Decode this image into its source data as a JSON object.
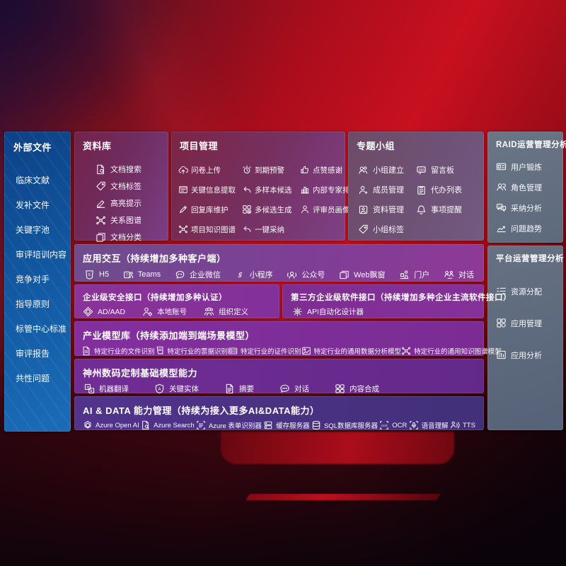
{
  "colors": {
    "background_red": "#c20f1e",
    "sidebar_blue": "#1157a0",
    "panel_purple": "#83309a",
    "panel_slate": "#5f6c7e",
    "row_indigo": "#47317f"
  },
  "left_panel": {
    "title": "外部文件",
    "items": [
      {
        "label": "临床文献"
      },
      {
        "label": "发补文件"
      },
      {
        "label": "关键字池"
      },
      {
        "label": "审评培训内容"
      },
      {
        "label": "竞争对手"
      },
      {
        "label": "指导原则"
      },
      {
        "label": "标管中心标准"
      },
      {
        "label": "审评报告"
      },
      {
        "label": "共性问题"
      }
    ]
  },
  "sections": {
    "library": {
      "title": "资料库",
      "items": [
        {
          "label": "文档搜索",
          "icon": "document-search-icon"
        },
        {
          "label": "文档标签",
          "icon": "tag-icon"
        },
        {
          "label": "高亮提示",
          "icon": "highlighter-icon"
        },
        {
          "label": "关系图谱",
          "icon": "knowledge-graph-icon"
        },
        {
          "label": "文档分类",
          "icon": "document-copy-icon"
        }
      ]
    },
    "project": {
      "title": "项目管理",
      "items": [
        {
          "label": "问卷上传",
          "icon": "cloud-upload-icon"
        },
        {
          "label": "到期预警",
          "icon": "alarm-icon"
        },
        {
          "label": "点赞感谢",
          "icon": "thumbs-up-icon"
        },
        {
          "label": "关键信息提取",
          "icon": "info-extract-icon"
        },
        {
          "label": "多样本候选",
          "icon": "reply-arrow-icon"
        },
        {
          "label": "内部专家排名",
          "icon": "ranking-icon"
        },
        {
          "label": "回复库维护",
          "icon": "pen-icon"
        },
        {
          "label": "多候选生成",
          "icon": "grid-generate-icon"
        },
        {
          "label": "评审员画像",
          "icon": "person-icon"
        },
        {
          "label": "项目知识图谱",
          "icon": "knowledge-graph-icon"
        },
        {
          "label": "一键采纳",
          "icon": "adopt-arrow-icon"
        }
      ]
    },
    "topic_group": {
      "title": "专题小组",
      "items": [
        {
          "label": "小组建立",
          "icon": "group-icon"
        },
        {
          "label": "留言板",
          "icon": "bbs-icon"
        },
        {
          "label": "成员管理",
          "icon": "member-icon"
        },
        {
          "label": "代办列表",
          "icon": "todo-list-icon"
        },
        {
          "label": "资料管理",
          "icon": "album-icon"
        },
        {
          "label": "事项提醒",
          "icon": "bell-icon"
        },
        {
          "label": "小组标签",
          "icon": "tag-icon"
        }
      ]
    },
    "raid": {
      "title": "RAID运营管理分析",
      "items": [
        {
          "label": "用户锻炼",
          "icon": "id-card-icon"
        },
        {
          "label": "角色管理",
          "icon": "roles-icon"
        },
        {
          "label": "采纳分析",
          "icon": "qa-chat-icon"
        },
        {
          "label": "问题趋势",
          "icon": "trend-icon"
        }
      ]
    },
    "platform": {
      "title": "平台运营管理分析",
      "items": [
        {
          "label": "资源分配",
          "icon": "resource-list-icon"
        },
        {
          "label": "应用管理",
          "icon": "apps-grid-icon"
        },
        {
          "label": "应用分析",
          "icon": "app-analytics-icon"
        }
      ]
    },
    "interaction": {
      "title": "应用交互（持续增加多种客户端）",
      "items": [
        {
          "label": "H5",
          "icon": "html5-icon"
        },
        {
          "label": "Teams",
          "icon": "teams-icon"
        },
        {
          "label": "企业微信",
          "icon": "wechat-work-icon"
        },
        {
          "label": "小程序",
          "icon": "miniprogram-icon"
        },
        {
          "label": "公众号",
          "icon": "official-account-icon"
        },
        {
          "label": "Web飘窗",
          "icon": "web-window-icon"
        },
        {
          "label": "门户",
          "icon": "portal-icon"
        },
        {
          "label": "对话",
          "icon": "dialog-icon"
        }
      ]
    },
    "security": {
      "title": "企业级安全接口（持续增加多种认证）",
      "items": [
        {
          "label": "AD/AAD",
          "icon": "ad-aad-icon"
        },
        {
          "label": "本地账号",
          "icon": "local-account-icon"
        },
        {
          "label": "组织定义",
          "icon": "org-icon"
        }
      ]
    },
    "third_party": {
      "title": "第三方企业级软件接口（持续增加多种企业主流软件接口）",
      "items": [
        {
          "label": "API自动化设计器",
          "icon": "api-gear-icon"
        }
      ]
    },
    "industry_models": {
      "title": "产业模型库（持续添加端到端场景模型）",
      "items": [
        {
          "label": "特定行业的文件识别",
          "icon": "file-recognition-icon"
        },
        {
          "label": "特定行业的票据识别",
          "icon": "receipt-icon"
        },
        {
          "label": "特定行业的证件识别",
          "icon": "certificate-icon"
        },
        {
          "label": "特定行业的通用数据分析模型",
          "icon": "data-analysis-model-icon"
        },
        {
          "label": "特定行业的通用知识图谱模型",
          "icon": "knowledge-graph-icon"
        }
      ]
    },
    "base_models": {
      "title": "神州数码定制基础模型能力",
      "items": [
        {
          "label": "机器翻译",
          "icon": "translate-icon"
        },
        {
          "label": "关键实体",
          "icon": "entity-shield-icon"
        },
        {
          "label": "摘要",
          "icon": "summary-icon"
        },
        {
          "label": "对话",
          "icon": "chat-icon"
        },
        {
          "label": "内容合成",
          "icon": "content-grid-icon"
        }
      ]
    },
    "ai_data": {
      "title": "AI & DATA 能力管理（持续为接入更多AI&DATA能力）",
      "items": [
        {
          "label": "Azure Open AI",
          "icon": "openai-icon"
        },
        {
          "label": "Azure Search",
          "icon": "azure-search-icon"
        },
        {
          "label": "Azure 表单识别器",
          "icon": "form-recognizer-icon"
        },
        {
          "label": "缓存服务器",
          "icon": "cache-server-icon"
        },
        {
          "label": "SQL数据库服务器",
          "icon": "sql-database-icon"
        },
        {
          "label": "OCR",
          "icon": "ocr-icon"
        },
        {
          "label": "语音理解",
          "icon": "speech-icon"
        },
        {
          "label": "TTS",
          "icon": "tts-icon"
        }
      ]
    }
  }
}
